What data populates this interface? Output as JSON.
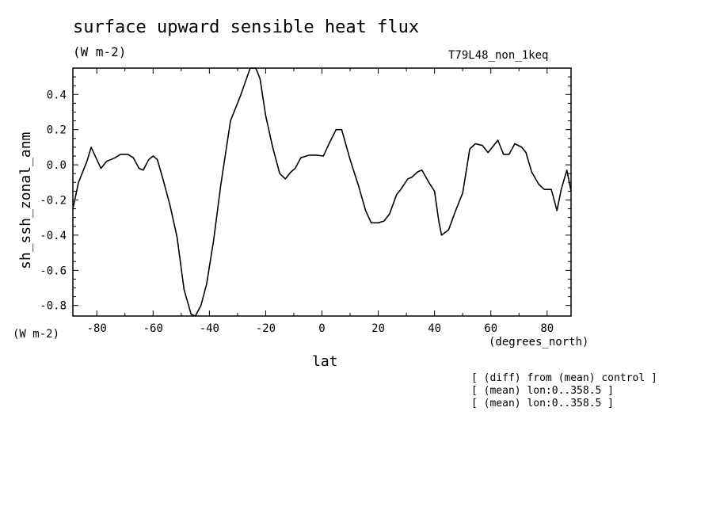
{
  "header": {
    "title": "surface upward sensible heat flux",
    "units": "(W m-2)",
    "run": "T79L48_non_1keq"
  },
  "axes": {
    "y_units": "(W m-2)",
    "x_units": "(degrees_north)"
  },
  "notes": [
    "[ (diff) from (mean) control ]",
    "[ (mean) lon:0..358.5 ]",
    "[ (mean) lon:0..358.5 ]"
  ],
  "chart_data": {
    "type": "line",
    "xlabel": "lat",
    "ylabel": "sh_ssh_zonal_anm",
    "xlim": [
      -88.5,
      88.5
    ],
    "ylim": [
      -0.86,
      0.55
    ],
    "xticks": [
      -80,
      -60,
      -40,
      -20,
      0,
      20,
      40,
      60,
      80
    ],
    "xticklabels": [
      "-80",
      "-60",
      "-40",
      "-20",
      "0",
      "20",
      "40",
      "60",
      "80"
    ],
    "yticks": [
      0.4,
      0.2,
      0.0,
      -0.2,
      -0.4,
      -0.6,
      -0.8
    ],
    "yticklabels": [
      "0.4",
      "0.2",
      "0.0",
      "-0.2",
      "-0.4",
      "-0.6",
      "-0.8"
    ],
    "grid": false,
    "series": [
      {
        "color": "#000000",
        "x": [
          -88.5,
          -86.5,
          -83.5,
          -82,
          -80,
          -78.5,
          -76.5,
          -73.5,
          -71.5,
          -69,
          -67,
          -65,
          -63.5,
          -61.5,
          -60,
          -58.5,
          -56.5,
          -54,
          -51.5,
          -49,
          -46.5,
          -45,
          -43,
          -41,
          -38.5,
          -36,
          -32.5,
          -29,
          -25.5,
          -23.5,
          -22,
          -20,
          -17.5,
          -15,
          -13,
          -11,
          -9.5,
          -7.5,
          -4.5,
          -2,
          0.5,
          2.5,
          5,
          7,
          10,
          13,
          15.5,
          17.5,
          20,
          22,
          24,
          26.5,
          28,
          30.5,
          32,
          34,
          35.5,
          38,
          40,
          41.5,
          42.5,
          45,
          47.5,
          50,
          52.5,
          54.5,
          57,
          59,
          61,
          62.5,
          64.5,
          66.5,
          68.5,
          71,
          72.5,
          74.5,
          77,
          79,
          81.5,
          83.5,
          85,
          87,
          88.5
        ],
        "y": [
          -0.25,
          -0.1,
          0.02,
          0.1,
          0.03,
          -0.02,
          0.02,
          0.04,
          0.06,
          0.06,
          0.04,
          -0.02,
          -0.03,
          0.03,
          0.05,
          0.03,
          -0.08,
          -0.23,
          -0.41,
          -0.71,
          -0.85,
          -0.86,
          -0.8,
          -0.68,
          -0.43,
          -0.12,
          0.25,
          0.39,
          0.55,
          0.55,
          0.49,
          0.28,
          0.1,
          -0.05,
          -0.08,
          -0.04,
          -0.02,
          0.04,
          0.055,
          0.055,
          0.05,
          0.12,
          0.2,
          0.2,
          0.03,
          -0.12,
          -0.26,
          -0.33,
          -0.33,
          -0.32,
          -0.28,
          -0.17,
          -0.14,
          -0.08,
          -0.07,
          -0.04,
          -0.03,
          -0.1,
          -0.15,
          -0.32,
          -0.4,
          -0.37,
          -0.26,
          -0.16,
          0.09,
          0.12,
          0.11,
          0.07,
          0.11,
          0.14,
          0.06,
          0.06,
          0.12,
          0.1,
          0.07,
          -0.04,
          -0.11,
          -0.14,
          -0.14,
          -0.26,
          -0.14,
          -0.03,
          -0.15
        ]
      }
    ]
  }
}
